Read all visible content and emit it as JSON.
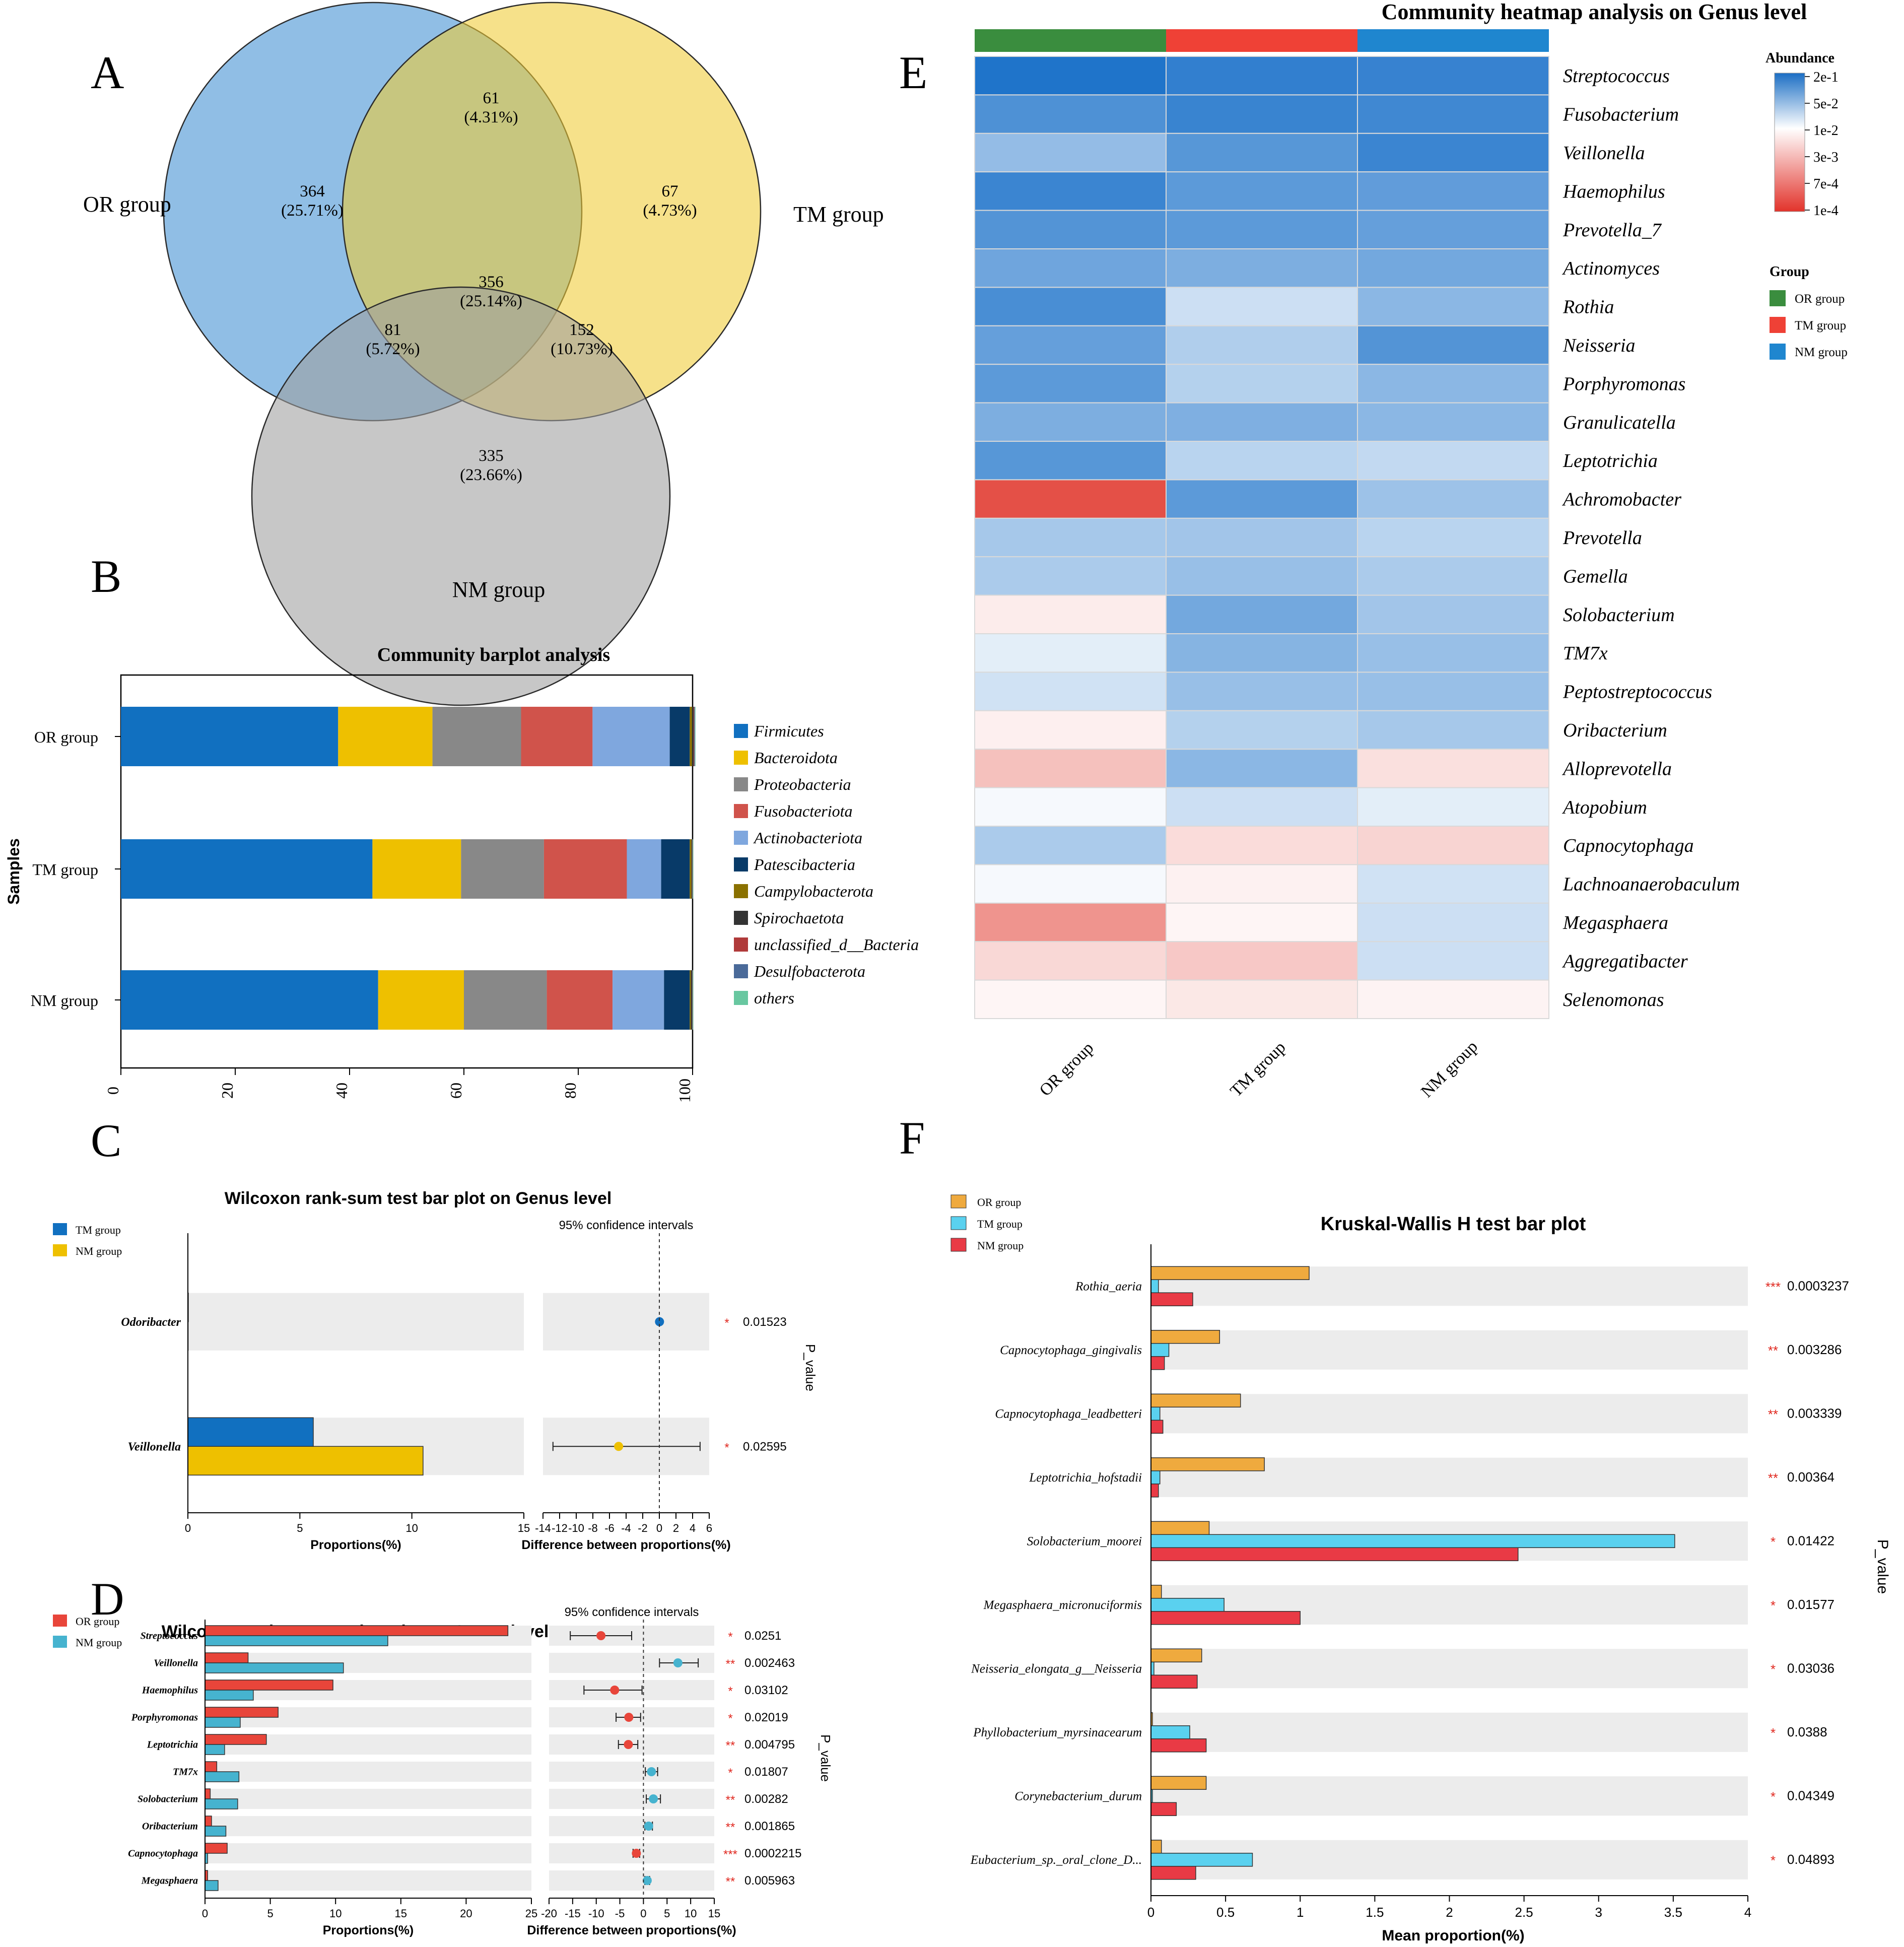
{
  "chart_data": [
    {
      "panel": "A",
      "type": "venn",
      "sets": [
        "OR group",
        "TM group",
        "NM group"
      ],
      "colors": {
        "OR group": "#3f8fd2",
        "TM group": "#f0cc35",
        "NM group": "#9e9e9e"
      },
      "regions": [
        {
          "sets": [
            "OR group"
          ],
          "count": "364",
          "percent": "(25.71%)"
        },
        {
          "sets": [
            "OR group",
            "TM group"
          ],
          "count": "61",
          "percent": "(4.31%)"
        },
        {
          "sets": [
            "TM group"
          ],
          "count": "67",
          "percent": "(4.73%)"
        },
        {
          "sets": [
            "OR group",
            "TM group",
            "NM group"
          ],
          "count": "356",
          "percent": "(25.14%)"
        },
        {
          "sets": [
            "OR group",
            "NM group"
          ],
          "count": "81",
          "percent": "(5.72%)"
        },
        {
          "sets": [
            "TM group",
            "NM group"
          ],
          "count": "152",
          "percent": "(10.73%)"
        },
        {
          "sets": [
            "NM group"
          ],
          "count": "335",
          "percent": "(23.66%)"
        }
      ]
    },
    {
      "panel": "B",
      "type": "bar",
      "orientation": "horizontal-stacked",
      "title": "Community barplot analysis",
      "ylabel": "Samples",
      "categories": [
        "OR group",
        "TM group",
        "NM group"
      ],
      "xlim": [
        0,
        100
      ],
      "xticks": [
        0,
        20,
        40,
        60,
        80,
        100
      ],
      "series": [
        {
          "name": "Firmicutes",
          "color": "#1170c0",
          "values": [
            38,
            44,
            45
          ]
        },
        {
          "name": "Bacteroidota",
          "color": "#eec000",
          "values": [
            16.5,
            15.5,
            15
          ]
        },
        {
          "name": "Proteobacteria",
          "color": "#888888",
          "values": [
            15.5,
            14.5,
            14.5
          ]
        },
        {
          "name": "Fusobacteriota",
          "color": "#d0534b",
          "values": [
            12.5,
            14.5,
            11.5
          ]
        },
        {
          "name": "Actinobacteriota",
          "color": "#7fa7de",
          "values": [
            13.5,
            6,
            9
          ]
        },
        {
          "name": "Patescibacteria",
          "color": "#083a68",
          "values": [
            3.5,
            5,
            4.5
          ]
        },
        {
          "name": "Campylobacterota",
          "color": "#8a7100",
          "values": [
            0.4,
            0.3,
            0.2
          ]
        },
        {
          "name": "Spirochaetota",
          "color": "#333333",
          "values": [
            0.3,
            0.1,
            0.2
          ]
        },
        {
          "name": "unclassified_d__Bacteria",
          "color": "#b03a3a",
          "values": [
            0.1,
            0.05,
            0.05
          ]
        },
        {
          "name": "Desulfobacterota",
          "color": "#4a6a99",
          "values": [
            0.1,
            0.05,
            0.05
          ]
        },
        {
          "name": "others",
          "color": "#68c7a0",
          "values": [
            0.1,
            0.1,
            0.1
          ]
        }
      ]
    },
    {
      "panel": "C",
      "type": "bar",
      "orientation": "horizontal-grouped-with-ci",
      "title": "Wilcoxon rank-sum test bar plot on Genus level",
      "legend": [
        {
          "name": "TM group",
          "color": "#1170c0"
        },
        {
          "name": "NM group",
          "color": "#eec000"
        }
      ],
      "ci_title": "95% confidence intervals",
      "xlabel": "Proportions(%)",
      "xlabel_ci": "Difference between proportions(%)",
      "p_label": "P_value",
      "xlim": [
        0,
        15
      ],
      "xticks": [
        "0",
        "5",
        "10",
        "15"
      ],
      "ci_xlim": [
        -14,
        6
      ],
      "ci_xticks": [
        "-14",
        "-12",
        "-10",
        "-8",
        "-6",
        "-4",
        "-2",
        "0",
        "2",
        "4",
        "6"
      ],
      "rows": [
        {
          "name": "Odoribacter",
          "values": [
            0.02,
            0.0
          ],
          "diff": 0.02,
          "ci": [
            0.0,
            0.04
          ],
          "ci_color": "#1170c0",
          "stars": "*",
          "p": "0.01523"
        },
        {
          "name": "Veillonella",
          "values": [
            5.6,
            10.5
          ],
          "diff": -4.9,
          "ci": [
            -12.8,
            4.9
          ],
          "ci_color": "#eec000",
          "stars": "*",
          "p": "0.02595"
        }
      ]
    },
    {
      "panel": "D",
      "type": "bar",
      "orientation": "horizontal-grouped-with-ci",
      "title": "Wilcoxon rank-sum test bar plot on Genus level",
      "legend": [
        {
          "name": "OR group",
          "color": "#e8453a"
        },
        {
          "name": "NM group",
          "color": "#46b3cf"
        }
      ],
      "ci_title": "95% confidence intervals",
      "xlabel": "Proportions(%)",
      "xlabel_ci": "Difference between proportions(%)",
      "p_label": "P_value",
      "xlim": [
        0,
        25
      ],
      "xticks": [
        "0",
        "5",
        "10",
        "15",
        "20",
        "25"
      ],
      "ci_xlim": [
        -20,
        15
      ],
      "ci_xticks": [
        "-20",
        "-15",
        "-10",
        "-5",
        "0",
        "5",
        "10",
        "15"
      ],
      "rows": [
        {
          "name": "Streptococcus",
          "values": [
            23.2,
            14
          ],
          "diff": -9,
          "ci": [
            -15.5,
            -2.5
          ],
          "stars": "*",
          "p": "0.0251"
        },
        {
          "name": "Veillonella",
          "values": [
            3.3,
            10.6
          ],
          "diff": 7.3,
          "ci": [
            3.4,
            11.6
          ],
          "stars": "**",
          "p": "0.002463"
        },
        {
          "name": "Haemophilus",
          "values": [
            9.8,
            3.7
          ],
          "diff": -6.1,
          "ci": [
            -12.6,
            -0.3
          ],
          "stars": "*",
          "p": "0.03102"
        },
        {
          "name": "Porphyromonas",
          "values": [
            5.6,
            2.7
          ],
          "diff": -3.1,
          "ci": [
            -5.8,
            -0.6
          ],
          "stars": "*",
          "p": "0.02019"
        },
        {
          "name": "Leptotrichia",
          "values": [
            4.7,
            1.5
          ],
          "diff": -3.2,
          "ci": [
            -5.3,
            -1.2
          ],
          "stars": "**",
          "p": "0.004795"
        },
        {
          "name": "TM7x",
          "values": [
            0.9,
            2.6
          ],
          "diff": 1.7,
          "ci": [
            0.4,
            3.0
          ],
          "stars": "*",
          "p": "0.01807"
        },
        {
          "name": "Solobacterium",
          "values": [
            0.4,
            2.5
          ],
          "diff": 2.1,
          "ci": [
            0.6,
            3.6
          ],
          "stars": "**",
          "p": "0.00282"
        },
        {
          "name": "Oribacterium",
          "values": [
            0.5,
            1.6
          ],
          "diff": 1.1,
          "ci": [
            0.3,
            1.9
          ],
          "stars": "**",
          "p": "0.001865"
        },
        {
          "name": "Capnocytophaga",
          "values": [
            1.7,
            0.2
          ],
          "diff": -1.5,
          "ci": [
            -2.2,
            -0.8
          ],
          "stars": "***",
          "p": "0.0002215"
        },
        {
          "name": "Megasphaera",
          "values": [
            0.2,
            1.0
          ],
          "diff": 0.8,
          "ci": [
            0.3,
            1.3
          ],
          "stars": "**",
          "p": "0.005963"
        }
      ]
    },
    {
      "panel": "E",
      "type": "heatmap",
      "title": "Community heatmap analysis on Genus level",
      "columns": [
        "OR group",
        "TM group",
        "NM group"
      ],
      "group_colors": [
        "#3a8d3e",
        "#ef4136",
        "#1f86cf"
      ],
      "legend_title": "Abundance",
      "legend_ticks": [
        "2e-1",
        "5e-2",
        "1e-2",
        "3e-3",
        "7e-4",
        "1e-4"
      ],
      "group_legend_title": "Group",
      "rows": [
        "Streptococcus",
        "Fusobacterium",
        "Veillonella",
        "Haemophilus",
        "Prevotella_7",
        "Actinomyces",
        "Rothia",
        "Neisseria",
        "Porphyromonas",
        "Granulicatella",
        "Leptotrichia",
        "Achromobacter",
        "Prevotella",
        "Gemella",
        "Solobacterium",
        "TM7x",
        "Peptostreptococcus",
        "Oribacterium",
        "Alloprevotella",
        "Atopobium",
        "Capnocytophaga",
        "Lachnoanaerobaculum",
        "Megasphaera",
        "Aggregatibacter",
        "Selenomonas"
      ],
      "values": [
        [
          0.96,
          0.88,
          0.86
        ],
        [
          0.76,
          0.85,
          0.82
        ],
        [
          0.46,
          0.72,
          0.84
        ],
        [
          0.84,
          0.7,
          0.68
        ],
        [
          0.74,
          0.7,
          0.66
        ],
        [
          0.62,
          0.56,
          0.6
        ],
        [
          0.78,
          0.22,
          0.5
        ],
        [
          0.66,
          0.34,
          0.74
        ],
        [
          0.7,
          0.32,
          0.5
        ],
        [
          0.56,
          0.55,
          0.5
        ],
        [
          0.72,
          0.3,
          0.26
        ],
        [
          -0.9,
          0.7,
          0.42
        ],
        [
          0.38,
          0.4,
          0.3
        ],
        [
          0.36,
          0.44,
          0.36
        ],
        [
          -0.1,
          0.6,
          0.4
        ],
        [
          0.12,
          0.52,
          0.44
        ],
        [
          0.2,
          0.44,
          0.44
        ],
        [
          -0.08,
          0.32,
          0.38
        ],
        [
          -0.32,
          0.5,
          -0.16
        ],
        [
          0.04,
          0.22,
          0.12
        ],
        [
          0.36,
          -0.18,
          -0.22
        ],
        [
          0.04,
          -0.07,
          0.2
        ],
        [
          -0.55,
          -0.05,
          0.22
        ],
        [
          -0.2,
          -0.28,
          0.22
        ],
        [
          -0.05,
          -0.12,
          -0.06
        ]
      ]
    },
    {
      "panel": "F",
      "type": "bar",
      "orientation": "horizontal-grouped",
      "title": "Kruskal-Wallis H test bar plot",
      "xlabel": "Mean proportion(%)",
      "p_label": "P_value",
      "xlim": [
        0,
        4
      ],
      "xticks": [
        "0",
        "0.5",
        "1",
        "1.5",
        "2",
        "2.5",
        "3",
        "3.5",
        "4"
      ],
      "legend": [
        {
          "name": "OR group",
          "color": "#efaa3e"
        },
        {
          "name": "TM group",
          "color": "#5ad1ef"
        },
        {
          "name": "NM group",
          "color": "#e93a45"
        }
      ],
      "rows": [
        {
          "name": "Rothia_aeria",
          "values": [
            1.06,
            0.05,
            0.28
          ],
          "stars": "***",
          "p": "0.0003237"
        },
        {
          "name": "Capnocytophaga_gingivalis",
          "values": [
            0.46,
            0.12,
            0.09
          ],
          "stars": "**",
          "p": "0.003286"
        },
        {
          "name": "Capnocytophaga_leadbetteri",
          "values": [
            0.6,
            0.06,
            0.08
          ],
          "stars": "**",
          "p": "0.003339"
        },
        {
          "name": "Leptotrichia_hofstadii",
          "values": [
            0.76,
            0.06,
            0.05
          ],
          "stars": "**",
          "p": "0.00364"
        },
        {
          "name": "Solobacterium_moorei",
          "values": [
            0.39,
            3.51,
            2.46
          ],
          "stars": "*",
          "p": "0.01422"
        },
        {
          "name": "Megasphaera_micronuciformis",
          "values": [
            0.07,
            0.49,
            1.0
          ],
          "stars": "*",
          "p": "0.01577"
        },
        {
          "name": "Neisseria_elongata_g__Neisseria",
          "values": [
            0.34,
            0.02,
            0.31
          ],
          "stars": "*",
          "p": "0.03036"
        },
        {
          "name": "Phyllobacterium_myrsinacearum",
          "values": [
            0.01,
            0.26,
            0.37
          ],
          "stars": "*",
          "p": "0.0388"
        },
        {
          "name": "Corynebacterium_durum",
          "values": [
            0.37,
            0.01,
            0.17
          ],
          "stars": "*",
          "p": "0.04349"
        },
        {
          "name": "Eubacterium_sp._oral_clone_D...",
          "values": [
            0.07,
            0.68,
            0.3
          ],
          "stars": "*",
          "p": "0.04893"
        }
      ]
    }
  ],
  "panel_labels": [
    "A",
    "B",
    "C",
    "D",
    "E",
    "F"
  ]
}
